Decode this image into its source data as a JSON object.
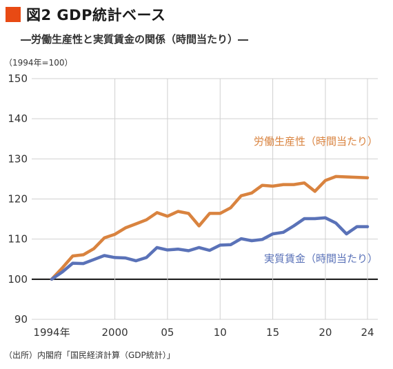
{
  "header": {
    "title": "図2 GDP統計ベース",
    "subtitle": "―労働生産性と実質賃金の関係（時間当たり）―",
    "unit_note": "（1994年=100）"
  },
  "footer": {
    "source": "（出所）内閣府「国民経済計算（GDP統計）」"
  },
  "colors": {
    "accent": "#e84a14",
    "productivity": "#d9833f",
    "wage": "#5a72b8",
    "grid": "#d0d0d0",
    "baseline": "#111111"
  },
  "chart_data": {
    "type": "line",
    "x": [
      1994,
      1995,
      1996,
      1997,
      1998,
      1999,
      2000,
      2001,
      2002,
      2003,
      2004,
      2005,
      2006,
      2007,
      2008,
      2009,
      2010,
      2011,
      2012,
      2013,
      2014,
      2015,
      2016,
      2017,
      2018,
      2019,
      2020,
      2021,
      2022,
      2023,
      2024
    ],
    "xticks": [
      {
        "x": 1994,
        "label": "1994年"
      },
      {
        "x": 2000,
        "label": "2000"
      },
      {
        "x": 2005,
        "label": "05"
      },
      {
        "x": 2010,
        "label": "10"
      },
      {
        "x": 2015,
        "label": "15"
      },
      {
        "x": 2020,
        "label": "20"
      },
      {
        "x": 2024,
        "label": "24"
      }
    ],
    "ylim": [
      90,
      150
    ],
    "yticks": [
      90,
      100,
      110,
      120,
      130,
      140,
      150
    ],
    "grid": true,
    "series": [
      {
        "name": "労働生産性（時間当たり）",
        "values": [
          100,
          102.8,
          105.8,
          106.1,
          107.6,
          110.3,
          111.2,
          112.8,
          113.8,
          114.8,
          116.6,
          115.7,
          116.9,
          116.4,
          113.3,
          116.4,
          116.4,
          117.8,
          120.8,
          121.5,
          123.4,
          123.2,
          123.6,
          123.6,
          124.0,
          121.9,
          124.6,
          125.6,
          125.5,
          125.4,
          125.3
        ]
      },
      {
        "name": "実質賃金（時間当たり）",
        "values": [
          100,
          101.8,
          104.0,
          103.9,
          104.9,
          105.9,
          105.4,
          105.3,
          104.6,
          105.4,
          107.9,
          107.3,
          107.5,
          107.1,
          107.9,
          107.2,
          108.5,
          108.6,
          110.1,
          109.6,
          109.9,
          111.3,
          111.7,
          113.3,
          115.1,
          115.1,
          115.3,
          114.0,
          111.3,
          113.1,
          113.1
        ]
      }
    ]
  }
}
